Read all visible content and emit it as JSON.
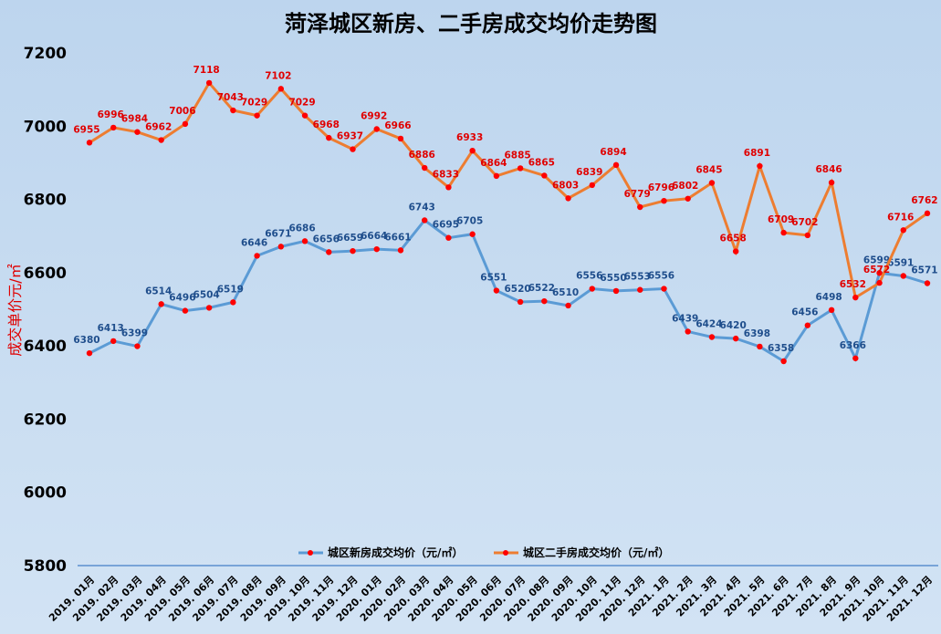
{
  "chart_data": {
    "type": "line",
    "title": "菏泽城区新房、二手房成交均价走势图",
    "xlabel": "",
    "ylabel": "成交单价元/㎡",
    "ylim": [
      5800,
      7200
    ],
    "yticks": [
      5800,
      6000,
      6200,
      6400,
      6600,
      6800,
      7000,
      7200
    ],
    "grid": false,
    "legend_position": "bottom",
    "categories": [
      "2019. 01月",
      "2019. 02月",
      "2019. 03月",
      "2019. 04月",
      "2019. 05月",
      "2019. 06月",
      "2019. 07月",
      "2019. 08月",
      "2019. 09月",
      "2019. 10月",
      "2019. 11月",
      "2019. 12月",
      "2020. 01月",
      "2020. 02月",
      "2020. 03月",
      "2020. 04月",
      "2020. 05月",
      "2020. 06月",
      "2020. 07月",
      "2020. 08月",
      "2020. 09月",
      "2020. 10月",
      "2020. 11月",
      "2020. 12月",
      "2021. 1月",
      "2021. 2月",
      "2021. 3月",
      "2021. 4月",
      "2021. 5月",
      "2021. 6月",
      "2021. 7月",
      "2021. 8月",
      "2021. 9月",
      "2021. 10月",
      "2021. 11月",
      "2021. 12月"
    ],
    "series": [
      {
        "name": "城区新房成交均价（元/㎡）",
        "color": "#5b9bd5",
        "values": [
          6380,
          6413,
          6399,
          6514,
          6496,
          6504,
          6519,
          6646,
          6671,
          6686,
          6656,
          6659,
          6664,
          6661,
          6743,
          6695,
          6705,
          6551,
          6520,
          6522,
          6510,
          6556,
          6550,
          6553,
          6556,
          6439,
          6424,
          6420,
          6398,
          6358,
          6456,
          6498,
          6366,
          6599,
          6591,
          6571
        ]
      },
      {
        "name": "城区二手房成交均价（元/㎡）",
        "color": "#ed7d31",
        "values": [
          6955,
          6996,
          6984,
          6962,
          7006,
          7118,
          7043,
          7029,
          7102,
          7029,
          6968,
          6937,
          6992,
          6966,
          6886,
          6833,
          6933,
          6864,
          6885,
          6865,
          6803,
          6839,
          6894,
          6779,
          6796,
          6802,
          6845,
          6658,
          6891,
          6709,
          6702,
          6846,
          6532,
          6572,
          6716,
          6762
        ]
      }
    ],
    "marker_color": "#ff0000"
  }
}
